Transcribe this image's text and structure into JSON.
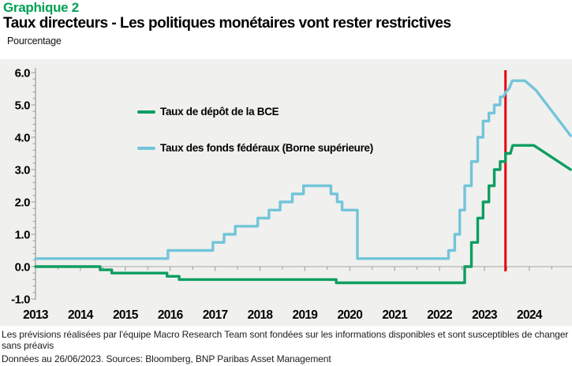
{
  "header": {
    "kicker": "Graphique 2",
    "title": "Taux directeurs - Les politiques monétaires vont rester restrictives",
    "unit_label": "Pourcentage"
  },
  "chart_data": {
    "type": "line",
    "title": "Taux directeurs - Les politiques monétaires vont rester restrictives",
    "ylabel": "Pourcentage",
    "xlabel": "",
    "ylim": [
      -1.0,
      6.0
    ],
    "xlim": [
      2013.0,
      2024.92
    ],
    "y_ticks": [
      6,
      5,
      4,
      3,
      2,
      1,
      0,
      -1
    ],
    "x_ticks": [
      2013,
      2014,
      2015,
      2016,
      2017,
      2018,
      2019,
      2020,
      2021,
      2022,
      2023,
      2024
    ],
    "grid": false,
    "legend_position": "upper-left-inside",
    "zero_axis_line": true,
    "forecast_marker": {
      "x": 2023.47,
      "label": "26/06/2023",
      "color": "#e8000d"
    },
    "series": [
      {
        "name": "Taux de dépôt de la BCE",
        "color": "#0d9e60",
        "points": [
          [
            2013.0,
            0.0
          ],
          [
            2014.44,
            0.0
          ],
          [
            2014.44,
            -0.1
          ],
          [
            2014.7,
            -0.1
          ],
          [
            2014.7,
            -0.2
          ],
          [
            2015.93,
            -0.2
          ],
          [
            2015.93,
            -0.3
          ],
          [
            2016.2,
            -0.3
          ],
          [
            2016.2,
            -0.4
          ],
          [
            2019.7,
            -0.4
          ],
          [
            2019.7,
            -0.5
          ],
          [
            2022.56,
            -0.5
          ],
          [
            2022.56,
            0.0
          ],
          [
            2022.71,
            0.0
          ],
          [
            2022.71,
            0.75
          ],
          [
            2022.85,
            0.75
          ],
          [
            2022.85,
            1.5
          ],
          [
            2022.97,
            1.5
          ],
          [
            2022.97,
            2.0
          ],
          [
            2023.1,
            2.0
          ],
          [
            2023.1,
            2.5
          ],
          [
            2023.22,
            2.5
          ],
          [
            2023.22,
            3.0
          ],
          [
            2023.35,
            3.0
          ],
          [
            2023.35,
            3.25
          ],
          [
            2023.47,
            3.25
          ],
          [
            2023.47,
            3.5
          ],
          [
            2023.58,
            3.5
          ],
          [
            2023.63,
            3.75
          ],
          [
            2024.1,
            3.75
          ],
          [
            2024.92,
            3.0
          ]
        ]
      },
      {
        "name": "Taux des fonds fédéraux (Borne supérieure)",
        "color": "#72c5da",
        "points": [
          [
            2013.0,
            0.25
          ],
          [
            2015.95,
            0.25
          ],
          [
            2015.95,
            0.5
          ],
          [
            2016.95,
            0.5
          ],
          [
            2016.95,
            0.75
          ],
          [
            2017.2,
            0.75
          ],
          [
            2017.2,
            1.0
          ],
          [
            2017.45,
            1.0
          ],
          [
            2017.45,
            1.25
          ],
          [
            2017.95,
            1.25
          ],
          [
            2017.95,
            1.5
          ],
          [
            2018.2,
            1.5
          ],
          [
            2018.2,
            1.75
          ],
          [
            2018.45,
            1.75
          ],
          [
            2018.45,
            2.0
          ],
          [
            2018.72,
            2.0
          ],
          [
            2018.72,
            2.25
          ],
          [
            2018.97,
            2.25
          ],
          [
            2018.97,
            2.5
          ],
          [
            2019.58,
            2.5
          ],
          [
            2019.58,
            2.25
          ],
          [
            2019.72,
            2.25
          ],
          [
            2019.72,
            2.0
          ],
          [
            2019.83,
            2.0
          ],
          [
            2019.83,
            1.75
          ],
          [
            2020.17,
            1.75
          ],
          [
            2020.17,
            0.25
          ],
          [
            2022.2,
            0.25
          ],
          [
            2022.2,
            0.5
          ],
          [
            2022.34,
            0.5
          ],
          [
            2022.34,
            1.0
          ],
          [
            2022.45,
            1.0
          ],
          [
            2022.45,
            1.75
          ],
          [
            2022.56,
            1.75
          ],
          [
            2022.56,
            2.5
          ],
          [
            2022.71,
            2.5
          ],
          [
            2022.71,
            3.25
          ],
          [
            2022.85,
            3.25
          ],
          [
            2022.85,
            4.0
          ],
          [
            2022.97,
            4.0
          ],
          [
            2022.97,
            4.5
          ],
          [
            2023.1,
            4.5
          ],
          [
            2023.1,
            4.75
          ],
          [
            2023.22,
            4.75
          ],
          [
            2023.22,
            5.0
          ],
          [
            2023.35,
            5.0
          ],
          [
            2023.35,
            5.25
          ],
          [
            2023.42,
            5.25
          ],
          [
            2023.48,
            5.4
          ],
          [
            2023.55,
            5.5
          ],
          [
            2023.62,
            5.75
          ],
          [
            2023.9,
            5.75
          ],
          [
            2024.15,
            5.45
          ],
          [
            2024.92,
            4.05
          ]
        ]
      }
    ]
  },
  "footer": {
    "disclaimer": "Les prévisions réalisées par l'équipe Macro Research Team sont fondées sur les informations disponibles et sont susceptibles de changer sans préavis",
    "source_line": "Données au 26/06/2023. Sources: Bloomberg, BNP Paribas Asset Management"
  }
}
